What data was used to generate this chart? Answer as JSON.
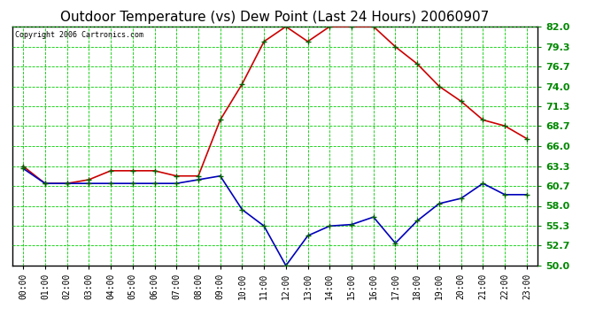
{
  "title": "Outdoor Temperature (vs) Dew Point (Last 24 Hours) 20060907",
  "copyright": "Copyright 2006 Cartronics.com",
  "background_color": "#ffffff",
  "plot_bg_color": "#ffffff",
  "grid_color": "#00cc00",
  "hours": [
    "00:00",
    "01:00",
    "02:00",
    "03:00",
    "04:00",
    "05:00",
    "06:00",
    "07:00",
    "08:00",
    "09:00",
    "10:00",
    "11:00",
    "12:00",
    "13:00",
    "14:00",
    "15:00",
    "16:00",
    "17:00",
    "18:00",
    "19:00",
    "20:00",
    "21:00",
    "22:00",
    "23:00"
  ],
  "temp_red": [
    63.3,
    61.0,
    61.0,
    61.5,
    62.7,
    62.7,
    62.7,
    62.0,
    62.0,
    69.5,
    74.3,
    80.0,
    82.0,
    80.0,
    82.0,
    82.0,
    82.0,
    79.3,
    77.0,
    74.0,
    72.0,
    69.5,
    68.7,
    67.0
  ],
  "dew_blue": [
    63.0,
    61.0,
    61.0,
    61.0,
    61.0,
    61.0,
    61.0,
    61.0,
    61.5,
    62.0,
    57.5,
    55.3,
    50.0,
    54.0,
    55.3,
    55.5,
    56.5,
    53.0,
    56.0,
    58.3,
    59.0,
    61.0,
    59.5,
    59.5
  ],
  "ylim": [
    50.0,
    82.0
  ],
  "yticks": [
    50.0,
    52.7,
    55.3,
    58.0,
    60.7,
    63.3,
    66.0,
    68.7,
    71.3,
    74.0,
    76.7,
    79.3,
    82.0
  ],
  "title_fontsize": 11,
  "tick_fontsize": 7,
  "copyright_fontsize": 6,
  "line_width": 1.2,
  "marker": "+",
  "marker_size": 5,
  "marker_color": "#006600",
  "red_color": "#cc0000",
  "blue_color": "#0000bb",
  "ytick_color": "#008800",
  "ytick_fontsize": 8
}
